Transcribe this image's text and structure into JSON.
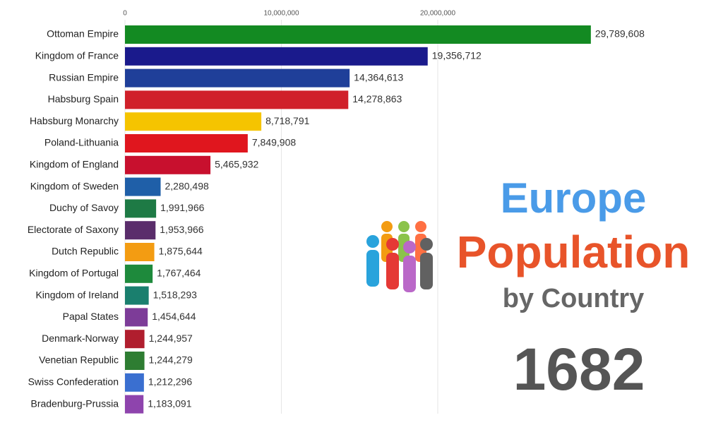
{
  "chart_data": {
    "type": "bar",
    "orientation": "horizontal",
    "title_parts": [
      "Europe",
      "Population",
      "by Country"
    ],
    "title_colors": [
      "#4a9be8",
      "#e8542a",
      "#666666"
    ],
    "year": 1682,
    "categories": [
      "Ottoman Empire",
      "Kingdom of France",
      "Russian Empire",
      "Habsburg Spain",
      "Habsburg Monarchy",
      "Poland-Lithuania",
      "Kingdom of England",
      "Kingdom of Sweden",
      "Duchy of Savoy",
      "Electorate of Saxony",
      "Dutch Republic",
      "Kingdom of Portugal",
      "Kingdom of Ireland",
      "Papal States",
      "Denmark-Norway",
      "Venetian Republic",
      "Swiss Confederation",
      "Bradenburg-Prussia"
    ],
    "values": [
      29789608,
      19356712,
      14364613,
      14278863,
      8718791,
      7849908,
      5465932,
      2280498,
      1991966,
      1953966,
      1875644,
      1767464,
      1518293,
      1454644,
      1244957,
      1244279,
      1212296,
      1183091
    ],
    "value_labels": [
      "29,789,608",
      "19,356,712",
      "14,364,613",
      "14,278,863",
      "8,718,791",
      "7,849,908",
      "5,465,932",
      "2,280,498",
      "1,991,966",
      "1,953,966",
      "1,875,644",
      "1,767,464",
      "1,518,293",
      "1,454,644",
      "1,244,957",
      "1,244,279",
      "1,212,296",
      "1,183,091"
    ],
    "colors": [
      "#138a22",
      "#1a1a8c",
      "#1f3f99",
      "#d0202a",
      "#f5c400",
      "#e0161e",
      "#c8102e",
      "#1f5fa8",
      "#1e7a45",
      "#5a2d6b",
      "#f39c12",
      "#1e8a3c",
      "#1a7f6e",
      "#7d3c98",
      "#b01e2e",
      "#2e7d32",
      "#3a6fd0",
      "#8e44ad"
    ],
    "xlim": [
      0,
      38000000
    ],
    "xticks": [
      0,
      {
        "value": 10000000,
        "label": "10,000,000"
      },
      {
        "value": 20000000,
        "label": "20,000,000"
      }
    ],
    "grid": true
  }
}
